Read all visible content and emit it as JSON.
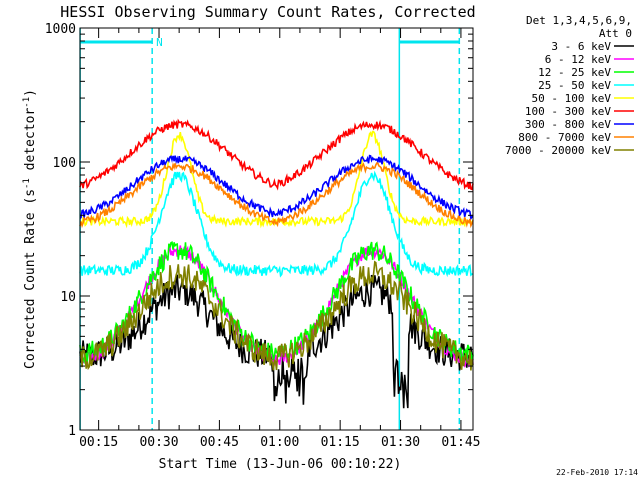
{
  "chart_data": {
    "type": "line",
    "title": "HESSI Observing Summary Count Rates, Corrected",
    "xlabel": "Start Time (13-Jun-06 00:10:22)",
    "ylabel_main": "Corrected Count Rate (s",
    "ylabel_sup1": "-1",
    "ylabel_mid": " detector",
    "ylabel_sup2": "-1",
    "ylabel_end": ")",
    "y_scale": "log",
    "ylim": [
      1,
      1000
    ],
    "xlim": [
      10.37,
      108
    ],
    "y_ticks": [
      1,
      10,
      100,
      1000
    ],
    "y_tick_labels": [
      "1",
      "10",
      "100",
      "1000"
    ],
    "x_ticks": [
      15,
      30,
      45,
      60,
      75,
      90,
      105
    ],
    "x_tick_labels": [
      "00:15",
      "00:30",
      "00:45",
      "01:00",
      "01:15",
      "01:30",
      "01:45"
    ],
    "legend_header": [
      "Det 1,3,4,5,6,9,",
      "Att 0"
    ],
    "legend_position": "right",
    "footer_date": "22-Feb-2010 17:14",
    "night_label": "N",
    "flag_color": "#00e5ee",
    "flag_dashed_x": [
      28.3,
      104.6
    ],
    "flag_solid_x": [
      10.4,
      89.7
    ],
    "flag_bars": [
      [
        10.4,
        28.3
      ],
      [
        89.7,
        104.6
      ]
    ],
    "orbit_centers": [
      35,
      83
    ],
    "series": [
      {
        "name": "3 - 6 keV",
        "color": "#000000",
        "profile": {
          "base": 3.5,
          "peak": 11.0,
          "width": 8.0,
          "noise": 0.12,
          "dip": true
        }
      },
      {
        "name": "6 - 12 keV",
        "color": "#ff00ff",
        "profile": {
          "base": 3.0,
          "peak": 22.0,
          "width": 9.5,
          "noise": 0.05,
          "dip": false
        }
      },
      {
        "name": "12 - 25 keV",
        "color": "#00ff00",
        "profile": {
          "base": 3.5,
          "peak": 22.0,
          "width": 9.0,
          "noise": 0.08,
          "dip": false
        }
      },
      {
        "name": "25 - 50 keV",
        "color": "#00ffff",
        "profile": {
          "base": 15.5,
          "peak": 80.0,
          "width": 4.5,
          "noise": 0.04,
          "dip": false
        }
      },
      {
        "name": "50 - 100 keV",
        "color": "#ffff00",
        "profile": {
          "base": 36.0,
          "peak": 160.0,
          "width": 3.0,
          "noise": 0.03,
          "dip": false
        }
      },
      {
        "name": "100 - 300 keV",
        "color": "#ff0000",
        "profile": {
          "base": 57.0,
          "peak": 190.0,
          "width": 12.0,
          "noise": 0.03,
          "dip": false
        }
      },
      {
        "name": "300 - 800 keV",
        "color": "#0000ff",
        "profile": {
          "base": 37.0,
          "peak": 105.0,
          "width": 11.0,
          "noise": 0.03,
          "dip": false
        }
      },
      {
        "name": "800 - 7000 keV",
        "color": "#ff8000",
        "profile": {
          "base": 32.0,
          "peak": 93.0,
          "width": 11.0,
          "noise": 0.03,
          "dip": false
        }
      },
      {
        "name": "7000 - 20000 keV",
        "color": "#808000",
        "profile": {
          "base": 3.2,
          "peak": 14.5,
          "width": 9.5,
          "noise": 0.1,
          "dip": false
        }
      }
    ]
  }
}
